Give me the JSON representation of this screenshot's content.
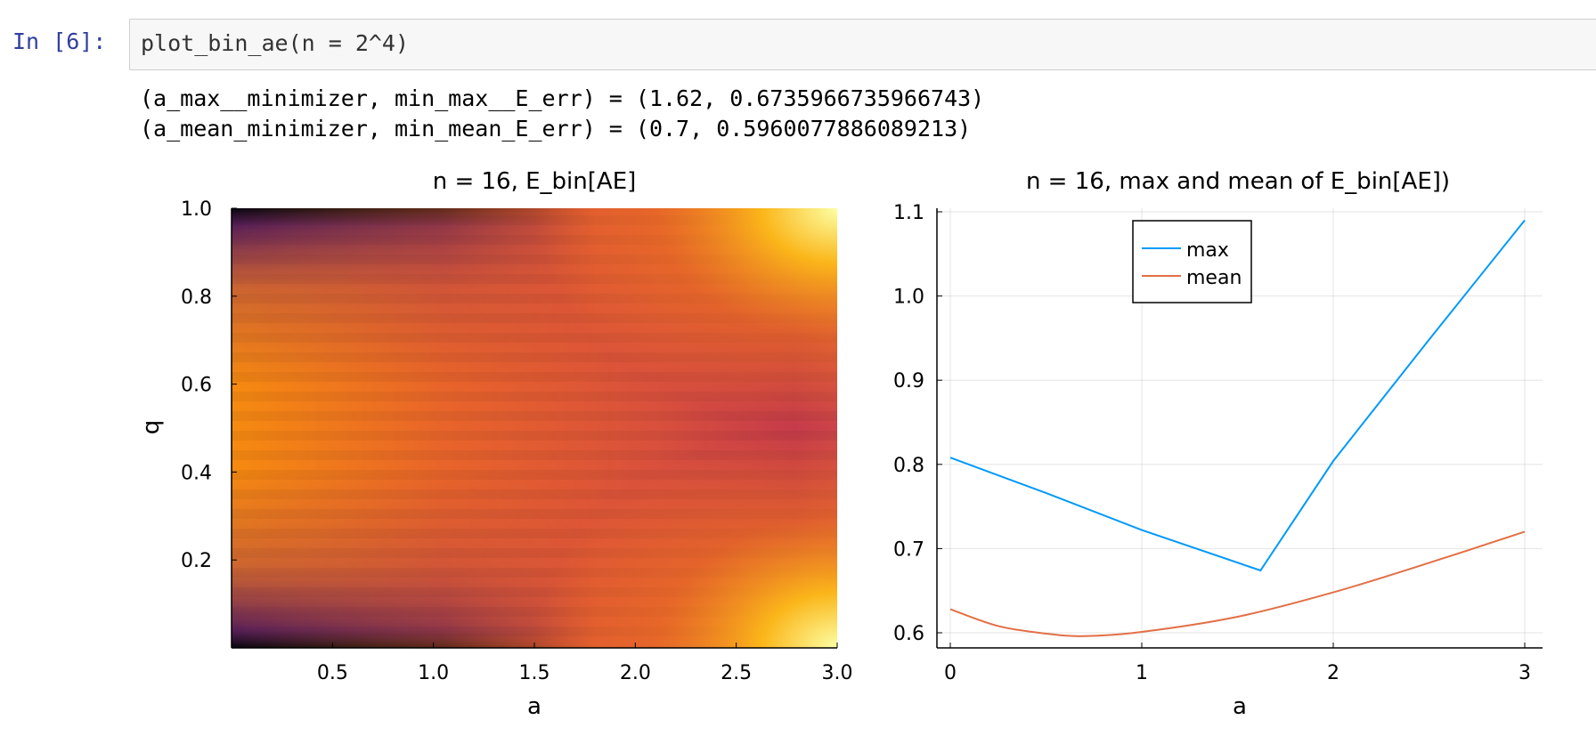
{
  "cell": {
    "prompt": "In [6]:",
    "code": "plot_bin_ae(n = 2^4)",
    "output_lines": [
      "(a_max__minimizer, min_max__E_err) = (1.62, 0.6735966735966743)",
      "(a_mean_minimizer, min_mean_E_err) = (0.7, 0.5960077886089213)"
    ]
  },
  "chart_data": [
    {
      "type": "heatmap",
      "title": "n = 16,  E_bin[AE]",
      "xlabel": "a",
      "ylabel": "q",
      "xlim": [
        0,
        3.0
      ],
      "ylim": [
        0,
        1.0
      ],
      "xticks": [
        "0.5",
        "1.0",
        "1.5",
        "2.0",
        "2.5",
        "3.0"
      ],
      "yticks": [
        "0.2",
        "0.4",
        "0.6",
        "0.8",
        "1.0"
      ],
      "colormap": "inferno",
      "grid": false
    },
    {
      "type": "line",
      "title": "n = 16,  max and mean of E_bin[AE])",
      "xlabel": "a",
      "ylabel": "",
      "xlim": [
        0,
        3
      ],
      "ylim": [
        0.6,
        1.1
      ],
      "xticks": [
        "0",
        "1",
        "2",
        "3"
      ],
      "yticks": [
        "0.6",
        "0.7",
        "0.8",
        "0.9",
        "1.0",
        "1.1"
      ],
      "grid": true,
      "legend": "top",
      "series": [
        {
          "name": "max",
          "color": "#009af9",
          "x": [
            0,
            0.5,
            1.0,
            1.62,
            2.0,
            2.5,
            3.0
          ],
          "y": [
            0.808,
            0.766,
            0.722,
            0.674,
            0.804,
            0.948,
            1.09
          ]
        },
        {
          "name": "mean",
          "color": "#e26f46",
          "x": [
            0,
            0.25,
            0.5,
            0.7,
            1.0,
            1.5,
            2.0,
            2.5,
            3.0
          ],
          "y": [
            0.628,
            0.608,
            0.599,
            0.596,
            0.601,
            0.619,
            0.648,
            0.683,
            0.72
          ]
        }
      ]
    }
  ]
}
